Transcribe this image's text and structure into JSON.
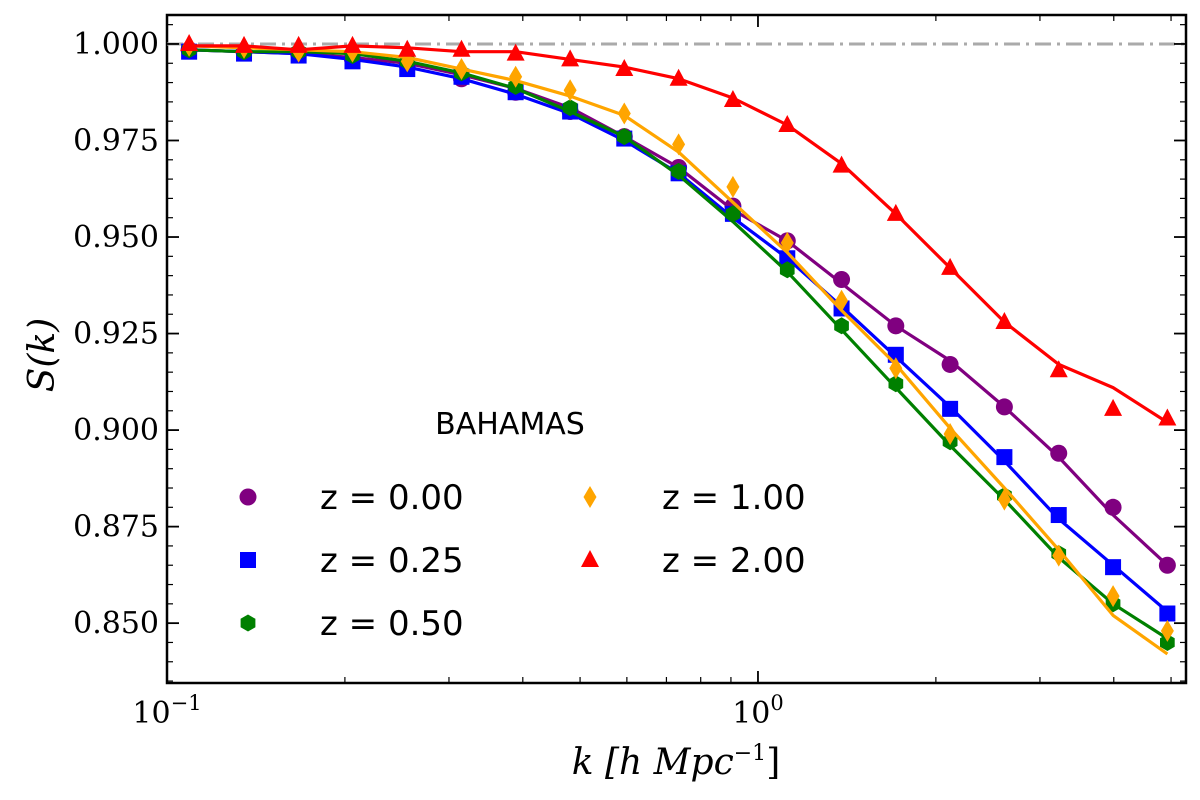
{
  "chart_data": {
    "type": "line",
    "xscale": "log",
    "xlim": [
      0.1,
      5.3
    ],
    "ylim": [
      0.8345,
      1.0075
    ],
    "xlabel": "k [h Mpc",
    "xlabel_sup": "−1",
    "xlabel_close": "]",
    "ylabel": "S(k)",
    "legend_title": "BAHAMAS",
    "legend_location": "lower-left",
    "x_major_ticks": [
      {
        "value": 0.1,
        "base": "10",
        "exp": "−1"
      },
      {
        "value": 1.0,
        "base": "10",
        "exp": "0"
      }
    ],
    "y_major_ticks": [
      {
        "value": 0.85,
        "label": "0.850"
      },
      {
        "value": 0.875,
        "label": "0.875"
      },
      {
        "value": 0.9,
        "label": "0.900"
      },
      {
        "value": 0.925,
        "label": "0.925"
      },
      {
        "value": 0.95,
        "label": "0.950"
      },
      {
        "value": 0.975,
        "label": "0.975"
      },
      {
        "value": 1.0,
        "label": "1.000"
      }
    ],
    "reference_line": {
      "y": 1.0,
      "style": "dash-dot",
      "color": "#aaaaaa"
    },
    "x": [
      0.109,
      0.135,
      0.167,
      0.206,
      0.255,
      0.315,
      0.389,
      0.481,
      0.594,
      0.734,
      0.907,
      1.121,
      1.385,
      1.711,
      2.114,
      2.612,
      3.228,
      3.989,
      4.929
    ],
    "series": [
      {
        "name": "z = 0.00",
        "color": "#800080",
        "marker": "circle",
        "points": [
          0.9985,
          0.998,
          0.9975,
          0.996,
          0.9945,
          0.991,
          0.9875,
          0.9825,
          0.976,
          0.968,
          0.958,
          0.949,
          0.939,
          0.927,
          0.917,
          0.906,
          0.894,
          0.88,
          0.865
        ],
        "line": [
          0.9985,
          0.998,
          0.9975,
          0.9965,
          0.995,
          0.992,
          0.9885,
          0.9835,
          0.976,
          0.968,
          0.957,
          0.949,
          0.938,
          0.927,
          0.918,
          0.906,
          0.893,
          0.878,
          0.865
        ]
      },
      {
        "name": "z = 0.25",
        "color": "#0000ff",
        "marker": "square",
        "points": [
          0.998,
          0.9975,
          0.997,
          0.9955,
          0.9935,
          0.9915,
          0.9875,
          0.9825,
          0.9755,
          0.9665,
          0.956,
          0.9445,
          0.9315,
          0.9195,
          0.9055,
          0.893,
          0.878,
          0.8645,
          0.8525
        ],
        "line": [
          0.9985,
          0.998,
          0.9975,
          0.996,
          0.994,
          0.991,
          0.987,
          0.982,
          0.975,
          0.9665,
          0.955,
          0.9445,
          0.932,
          0.919,
          0.906,
          0.892,
          0.877,
          0.865,
          0.853
        ]
      },
      {
        "name": "z = 0.50",
        "color": "#008000",
        "marker": "hexagon",
        "points": [
          0.9985,
          0.998,
          0.998,
          0.997,
          0.9955,
          0.9925,
          0.989,
          0.9835,
          0.976,
          0.967,
          0.956,
          0.9415,
          0.927,
          0.912,
          0.897,
          0.883,
          0.868,
          0.855,
          0.845
        ],
        "line": [
          0.9985,
          0.998,
          0.998,
          0.9975,
          0.9955,
          0.9925,
          0.9885,
          0.9825,
          0.976,
          0.966,
          0.954,
          0.941,
          0.926,
          0.911,
          0.896,
          0.882,
          0.867,
          0.855,
          0.846
        ]
      },
      {
        "name": "z = 1.00",
        "color": "#ffa500",
        "marker": "thin-diamond",
        "points": [
          0.9995,
          0.999,
          0.998,
          0.998,
          0.9955,
          0.9935,
          0.9915,
          0.988,
          0.982,
          0.974,
          0.963,
          0.9485,
          0.9335,
          0.916,
          0.899,
          0.882,
          0.8675,
          0.857,
          0.848
        ],
        "line": [
          0.9995,
          0.999,
          0.9985,
          0.998,
          0.9965,
          0.9935,
          0.9905,
          0.9865,
          0.9815,
          0.972,
          0.959,
          0.946,
          0.931,
          0.917,
          0.9005,
          0.885,
          0.869,
          0.852,
          0.842
        ]
      },
      {
        "name": "z = 2.00",
        "color": "#ff0000",
        "marker": "triangle",
        "points": [
          1.0,
          0.9995,
          0.9995,
          0.9995,
          0.9985,
          0.9985,
          0.9975,
          0.996,
          0.9935,
          0.991,
          0.9855,
          0.979,
          0.9685,
          0.956,
          0.942,
          0.928,
          0.9155,
          0.9055,
          0.903
        ],
        "line": [
          0.9995,
          0.9995,
          0.9985,
          0.9995,
          0.999,
          0.998,
          0.998,
          0.996,
          0.994,
          0.991,
          0.986,
          0.979,
          0.969,
          0.956,
          0.942,
          0.928,
          0.917,
          0.911,
          0.902
        ]
      }
    ]
  }
}
